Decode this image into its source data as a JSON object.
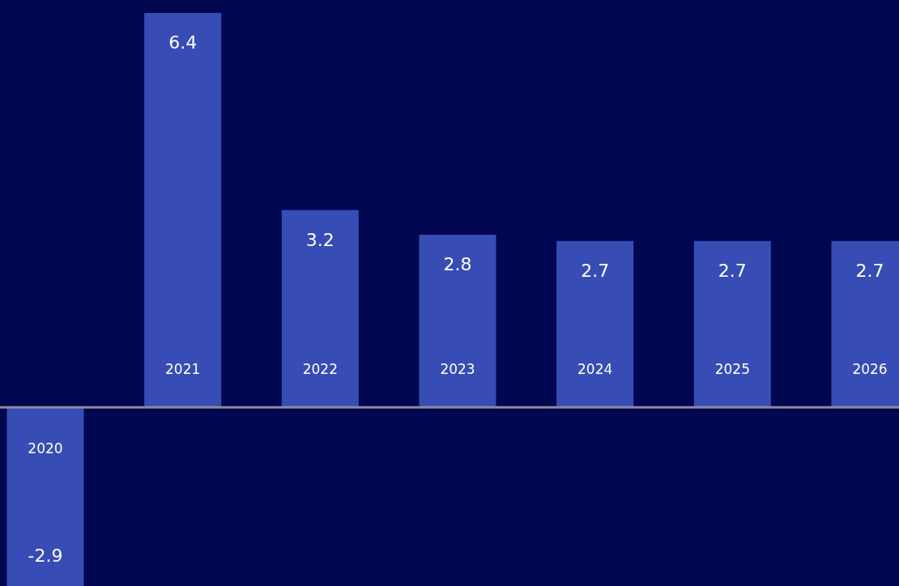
{
  "chart_data": {
    "type": "bar",
    "categories": [
      "2020",
      "2021",
      "2022",
      "2023",
      "2024",
      "2025",
      "2026"
    ],
    "values": [
      -2.9,
      6.4,
      3.2,
      2.8,
      2.7,
      2.7,
      2.7
    ],
    "color": "#374db5",
    "data_labels": true
  }
}
